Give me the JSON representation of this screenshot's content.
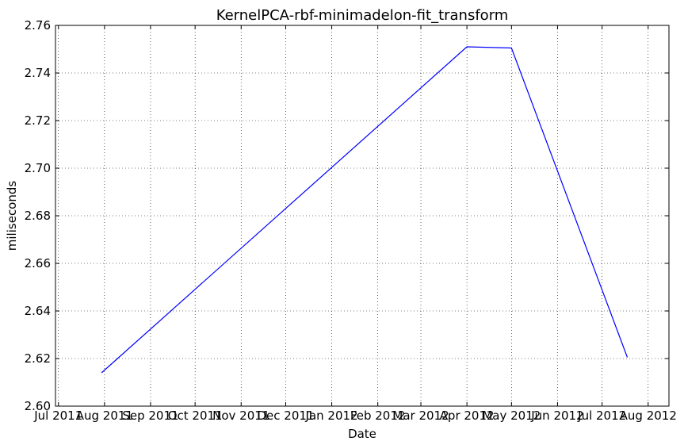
{
  "chart_data": {
    "type": "line",
    "title": "KernelPCA-rbf-minimadelon-fit_transform",
    "xlabel": "Date",
    "ylabel": "miliseconds",
    "x_tick_labels": [
      "Jul 2011",
      "Aug 2011",
      "Sep 2011",
      "Oct 2011",
      "Nov 2011",
      "Dec 2011",
      "Jan 2012",
      "Feb 2012",
      "Mar 2012",
      "Apr 2012",
      "May 2012",
      "Jun 2012",
      "Jul 2012",
      "Aug 2012"
    ],
    "x_ticks": [
      "2011-07-01",
      "2011-08-01",
      "2011-09-01",
      "2011-10-01",
      "2011-11-01",
      "2011-12-01",
      "2012-01-01",
      "2012-02-01",
      "2012-03-01",
      "2012-04-01",
      "2012-05-01",
      "2012-06-01",
      "2012-07-01",
      "2012-08-01"
    ],
    "xlim": [
      "2011-06-29",
      "2012-08-15"
    ],
    "y_tick_labels": [
      "2.60",
      "2.62",
      "2.64",
      "2.66",
      "2.68",
      "2.70",
      "2.72",
      "2.74",
      "2.76"
    ],
    "y_ticks": [
      2.6,
      2.62,
      2.64,
      2.66,
      2.68,
      2.7,
      2.72,
      2.74,
      2.76
    ],
    "ylim": [
      2.6,
      2.76
    ],
    "grid": true,
    "series": [
      {
        "color": "#0000ff",
        "points": [
          {
            "x": "2011-07-30",
            "y": 2.614
          },
          {
            "x": "2012-04-01",
            "y": 2.751
          },
          {
            "x": "2012-05-01",
            "y": 2.7505
          },
          {
            "x": "2012-07-18",
            "y": 2.6205
          }
        ]
      }
    ]
  }
}
